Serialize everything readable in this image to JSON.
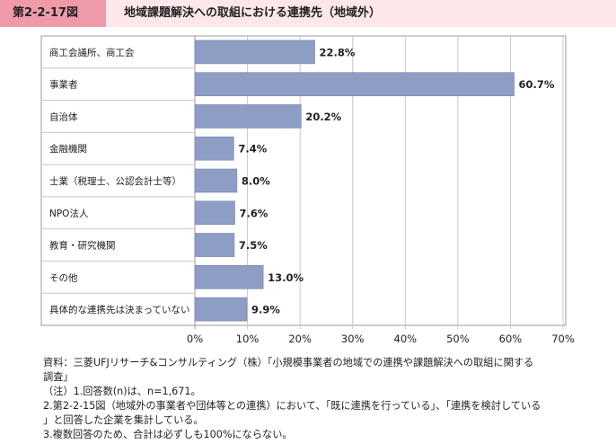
{
  "header": {
    "figure_number": "第2-2-17図",
    "title": "地域課題解決への取組における連携先（地域外）"
  },
  "chart_data": {
    "type": "bar",
    "orientation": "horizontal",
    "categories": [
      "商工会議所、商工会",
      "事業者",
      "自治体",
      "金融機関",
      "士業（税理士、公認会計士等）",
      "NPO法人",
      "教育・研究機関",
      "その他",
      "具体的な連携先は決まっていない"
    ],
    "values": [
      22.8,
      60.7,
      20.2,
      7.4,
      8.0,
      7.6,
      7.5,
      13.0,
      9.9
    ],
    "value_labels": [
      "22.8%",
      "60.7%",
      "20.2%",
      "7.4%",
      "8.0%",
      "7.6%",
      "7.5%",
      "13.0%",
      "9.9%"
    ],
    "xlim": [
      0,
      70
    ],
    "x_ticks": [
      "0%",
      "10%",
      "20%",
      "30%",
      "40%",
      "50%",
      "60%",
      "70%"
    ],
    "grid": "vertical",
    "bar_color": "#8d9dc4"
  },
  "notes": [
    "資料：三菱UFJリサーチ&コンサルティング（株）「小規模事業者の地域での連携や課題解決への取組に関する",
    "調査」",
    "（注）1.回答数(n)は、n=1,671。",
    "2.第2-2-15図（地域外の事業者や団体等との連携）において、「既に連携を行っている」、「連携を検討している",
    "」と回答した企業を集計している。",
    "3.複数回答のため、合計は必ずしも100%にならない。"
  ]
}
